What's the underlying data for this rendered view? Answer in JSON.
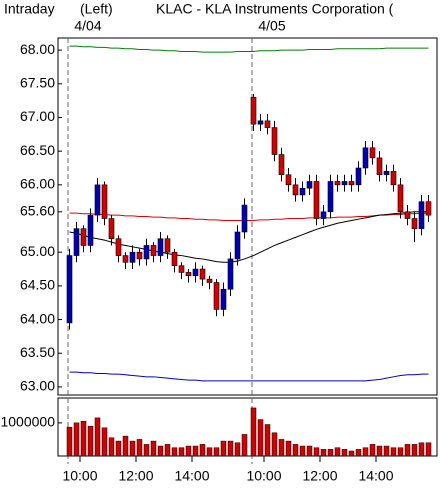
{
  "chart_data": {
    "type": "candlestick",
    "title": "Intraday",
    "subtitle": "(Left)",
    "heading": "KLAC - KLA Instruments Corporation  (",
    "dates": [
      "4/04",
      "4/05"
    ],
    "categories": [
      null,
      null,
      "10:00",
      null,
      null,
      null,
      null,
      null,
      null,
      null,
      "12:00",
      null,
      null,
      null,
      null,
      null,
      null,
      null,
      "14:00",
      null,
      null,
      null,
      null,
      null,
      null,
      null,
      null,
      null,
      "10:00",
      null,
      null,
      null,
      null,
      null,
      null,
      null,
      "12:00",
      null,
      null,
      null,
      null,
      null,
      null,
      null,
      "14:00",
      null,
      null,
      null,
      null,
      null,
      null,
      null
    ],
    "open": [
      63.95,
      64.95,
      65.35,
      65.1,
      65.55,
      66.0,
      65.5,
      65.2,
      64.95,
      64.85,
      65.0,
      64.9,
      65.1,
      64.95,
      65.2,
      65.0,
      64.8,
      64.7,
      64.65,
      64.75,
      64.6,
      64.55,
      64.15,
      64.45,
      64.9,
      65.3,
      67.3,
      66.9,
      66.95,
      66.85,
      66.45,
      66.15,
      66.0,
      65.85,
      65.95,
      66.05,
      65.5,
      65.6,
      66.05,
      66.0,
      66.05,
      66.0,
      66.25,
      66.55,
      66.4,
      66.15,
      66.2,
      66.0,
      65.6,
      65.5,
      65.35,
      65.75
    ],
    "high": [
      65.05,
      65.45,
      65.4,
      65.65,
      66.1,
      66.05,
      65.55,
      65.25,
      65.0,
      65.1,
      65.05,
      65.2,
      65.15,
      65.3,
      65.25,
      65.05,
      64.85,
      64.75,
      64.85,
      64.8,
      64.65,
      64.6,
      64.55,
      65.0,
      65.4,
      65.8,
      67.35,
      67.05,
      67.05,
      66.95,
      66.55,
      66.25,
      66.1,
      66.05,
      66.15,
      66.15,
      65.7,
      66.15,
      66.15,
      66.15,
      66.15,
      66.35,
      66.65,
      66.65,
      66.5,
      66.3,
      66.3,
      66.1,
      65.7,
      65.6,
      65.85,
      65.85
    ],
    "low": [
      63.85,
      64.85,
      65.0,
      65.0,
      65.45,
      65.4,
      65.1,
      64.85,
      64.75,
      64.75,
      64.8,
      64.8,
      64.85,
      64.85,
      64.9,
      64.7,
      64.6,
      64.55,
      64.55,
      64.5,
      64.45,
      64.05,
      64.05,
      64.35,
      64.8,
      65.2,
      66.8,
      66.8,
      66.75,
      66.35,
      66.05,
      65.9,
      65.75,
      65.75,
      65.85,
      65.4,
      65.4,
      65.5,
      65.9,
      65.9,
      65.9,
      65.9,
      66.15,
      66.3,
      66.05,
      66.05,
      65.9,
      65.5,
      65.4,
      65.15,
      65.25,
      65.45
    ],
    "close": [
      64.95,
      65.35,
      65.1,
      65.55,
      66.0,
      65.5,
      65.2,
      64.95,
      64.85,
      65.0,
      64.9,
      65.1,
      64.95,
      65.2,
      65.0,
      64.8,
      64.7,
      64.65,
      64.75,
      64.6,
      64.55,
      64.15,
      64.45,
      64.9,
      65.3,
      65.7,
      66.9,
      66.95,
      66.85,
      66.45,
      66.15,
      66.0,
      65.85,
      65.95,
      66.05,
      65.5,
      65.6,
      66.05,
      66.0,
      66.05,
      66.0,
      66.25,
      66.55,
      66.4,
      66.15,
      66.2,
      66.0,
      65.6,
      65.5,
      65.35,
      65.75,
      65.55
    ],
    "up_color": "#0000b0",
    "down_color": "#d00000",
    "series": [
      {
        "color": "#008000",
        "values": [
          68.06,
          68.06,
          68.05,
          68.05,
          68.04,
          68.04,
          68.03,
          68.03,
          68.02,
          68.02,
          68.01,
          68.01,
          68.0,
          68.0,
          67.99,
          67.99,
          67.98,
          67.98,
          67.98,
          67.97,
          67.97,
          67.97,
          67.97,
          67.97,
          67.98,
          67.98,
          67.98,
          67.99,
          67.99,
          67.99,
          68.0,
          68.0,
          68.0,
          68.0,
          68.01,
          68.01,
          68.01,
          68.01,
          68.02,
          68.02,
          68.02,
          68.02,
          68.02,
          68.02,
          68.02,
          68.03,
          68.03,
          68.03,
          68.03,
          68.03,
          68.03,
          68.03
        ]
      },
      {
        "color": "#e00000",
        "values": [
          65.58,
          65.58,
          65.57,
          65.57,
          65.56,
          65.56,
          65.55,
          65.55,
          65.54,
          65.54,
          65.53,
          65.53,
          65.52,
          65.52,
          65.51,
          65.51,
          65.5,
          65.5,
          65.49,
          65.49,
          65.48,
          65.48,
          65.47,
          65.47,
          65.47,
          65.47,
          65.47,
          65.48,
          65.48,
          65.49,
          65.49,
          65.5,
          65.5,
          65.5,
          65.51,
          65.51,
          65.51,
          65.51,
          65.52,
          65.52,
          65.52,
          65.53,
          65.53,
          65.54,
          65.55,
          65.55,
          65.56,
          65.56,
          65.57,
          65.57,
          65.58,
          65.58
        ]
      },
      {
        "color": "#0000c0",
        "values": [
          63.22,
          63.22,
          63.21,
          63.21,
          63.2,
          63.2,
          63.19,
          63.19,
          63.18,
          63.17,
          63.16,
          63.15,
          63.15,
          63.14,
          63.13,
          63.12,
          63.11,
          63.1,
          63.1,
          63.09,
          63.09,
          63.09,
          63.09,
          63.09,
          63.09,
          63.09,
          63.09,
          63.09,
          63.09,
          63.09,
          63.09,
          63.09,
          63.09,
          63.09,
          63.09,
          63.09,
          63.09,
          63.09,
          63.09,
          63.09,
          63.09,
          63.09,
          63.09,
          63.1,
          63.11,
          63.13,
          63.15,
          63.17,
          63.18,
          63.18,
          63.19,
          63.19
        ]
      },
      {
        "color": "#000000",
        "values": [
          65.3,
          65.28,
          65.25,
          65.22,
          65.2,
          65.18,
          65.15,
          65.12,
          65.1,
          65.08,
          65.06,
          65.04,
          65.02,
          65.0,
          64.98,
          64.96,
          64.95,
          64.93,
          64.91,
          64.9,
          64.88,
          64.86,
          64.85,
          64.85,
          64.87,
          64.9,
          64.95,
          65.0,
          65.05,
          65.1,
          65.14,
          65.18,
          65.22,
          65.26,
          65.3,
          65.34,
          65.37,
          65.4,
          65.43,
          65.45,
          65.47,
          65.49,
          65.51,
          65.53,
          65.55,
          65.56,
          65.57,
          65.58,
          65.59,
          65.6,
          65.6,
          65.6
        ]
      }
    ],
    "ylim": [
      62.88,
      68.18
    ],
    "yticks": [
      {
        "value": 68,
        "label": "68.00"
      },
      {
        "value": 67.5,
        "label": "67.50"
      },
      {
        "value": 67,
        "label": "67.00"
      },
      {
        "value": 66.5,
        "label": "66.50"
      },
      {
        "value": 66,
        "label": "66.00"
      },
      {
        "value": 65.6,
        "label": "65.60"
      },
      {
        "value": 65,
        "label": "65.00"
      },
      {
        "value": 64.5,
        "label": "64.50"
      },
      {
        "value": 64,
        "label": "64.00"
      },
      {
        "value": 63.5,
        "label": "63.50"
      },
      {
        "value": 63,
        "label": "63.00"
      }
    ],
    "volume": [
      870000,
      1000000,
      1050000,
      900000,
      1150000,
      850000,
      550000,
      450000,
      600000,
      450000,
      500000,
      350000,
      450000,
      300000,
      350000,
      250000,
      250000,
      300000,
      300000,
      350000,
      250000,
      250000,
      450000,
      450000,
      400000,
      650000,
      1450000,
      1100000,
      950000,
      700000,
      500000,
      450000,
      350000,
      300000,
      300000,
      250000,
      200000,
      200000,
      250000,
      200000,
      150000,
      200000,
      250000,
      350000,
      300000,
      300000,
      250000,
      250000,
      350000,
      350000,
      400000,
      400000
    ],
    "volume_color": "#d00000",
    "volume_ylim": [
      0,
      1750000
    ],
    "volume_yticks": [
      1000000
    ]
  }
}
